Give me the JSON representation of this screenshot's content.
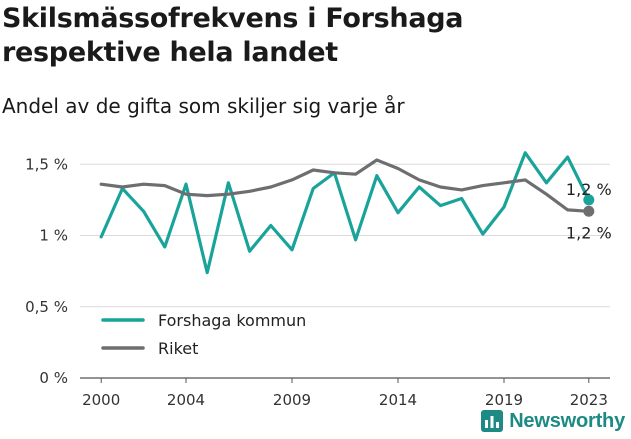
{
  "title": "Skilsmässofrekvens i Forshaga respektive hela landet",
  "subtitle": "Andel av de gifta som skiljer sig varje år",
  "brand": {
    "name": "Newsworthy",
    "icon": "bar-chart-logo-icon",
    "color": "#1e8a84"
  },
  "chart_data": {
    "type": "line",
    "x": [
      2000,
      2001,
      2002,
      2003,
      2004,
      2005,
      2006,
      2007,
      2008,
      2009,
      2010,
      2011,
      2012,
      2013,
      2014,
      2015,
      2016,
      2017,
      2018,
      2019,
      2020,
      2021,
      2022,
      2023
    ],
    "series": [
      {
        "name": "Forshaga kommun",
        "color": "#1aa39a",
        "values": [
          0.99,
          1.33,
          1.17,
          0.92,
          1.36,
          0.74,
          1.37,
          0.89,
          1.07,
          0.9,
          1.33,
          1.44,
          0.97,
          1.42,
          1.16,
          1.34,
          1.21,
          1.26,
          1.01,
          1.2,
          1.58,
          1.37,
          1.55,
          1.25
        ],
        "end_label": "1,2 %"
      },
      {
        "name": "Riket",
        "color": "#6e6e70",
        "values": [
          1.36,
          1.34,
          1.36,
          1.35,
          1.29,
          1.28,
          1.29,
          1.31,
          1.34,
          1.39,
          1.46,
          1.44,
          1.43,
          1.53,
          1.47,
          1.39,
          1.34,
          1.32,
          1.35,
          1.37,
          1.39,
          1.29,
          1.18,
          1.17
        ],
        "end_label": "1,2 %"
      }
    ],
    "xticks": [
      2000,
      2004,
      2009,
      2014,
      2019,
      2023
    ],
    "xtick_labels": [
      "2000",
      "2004",
      "2009",
      "2014",
      "2019",
      "2023"
    ],
    "yticks": [
      0,
      0.5,
      1,
      1.5
    ],
    "ytick_labels": [
      "0 %",
      "0,5 %",
      "1 %",
      "1,5 %"
    ],
    "ylim": [
      0,
      1.6
    ],
    "xlim": [
      1999,
      2024
    ],
    "grid": true,
    "legend_position": "bottom-left"
  }
}
